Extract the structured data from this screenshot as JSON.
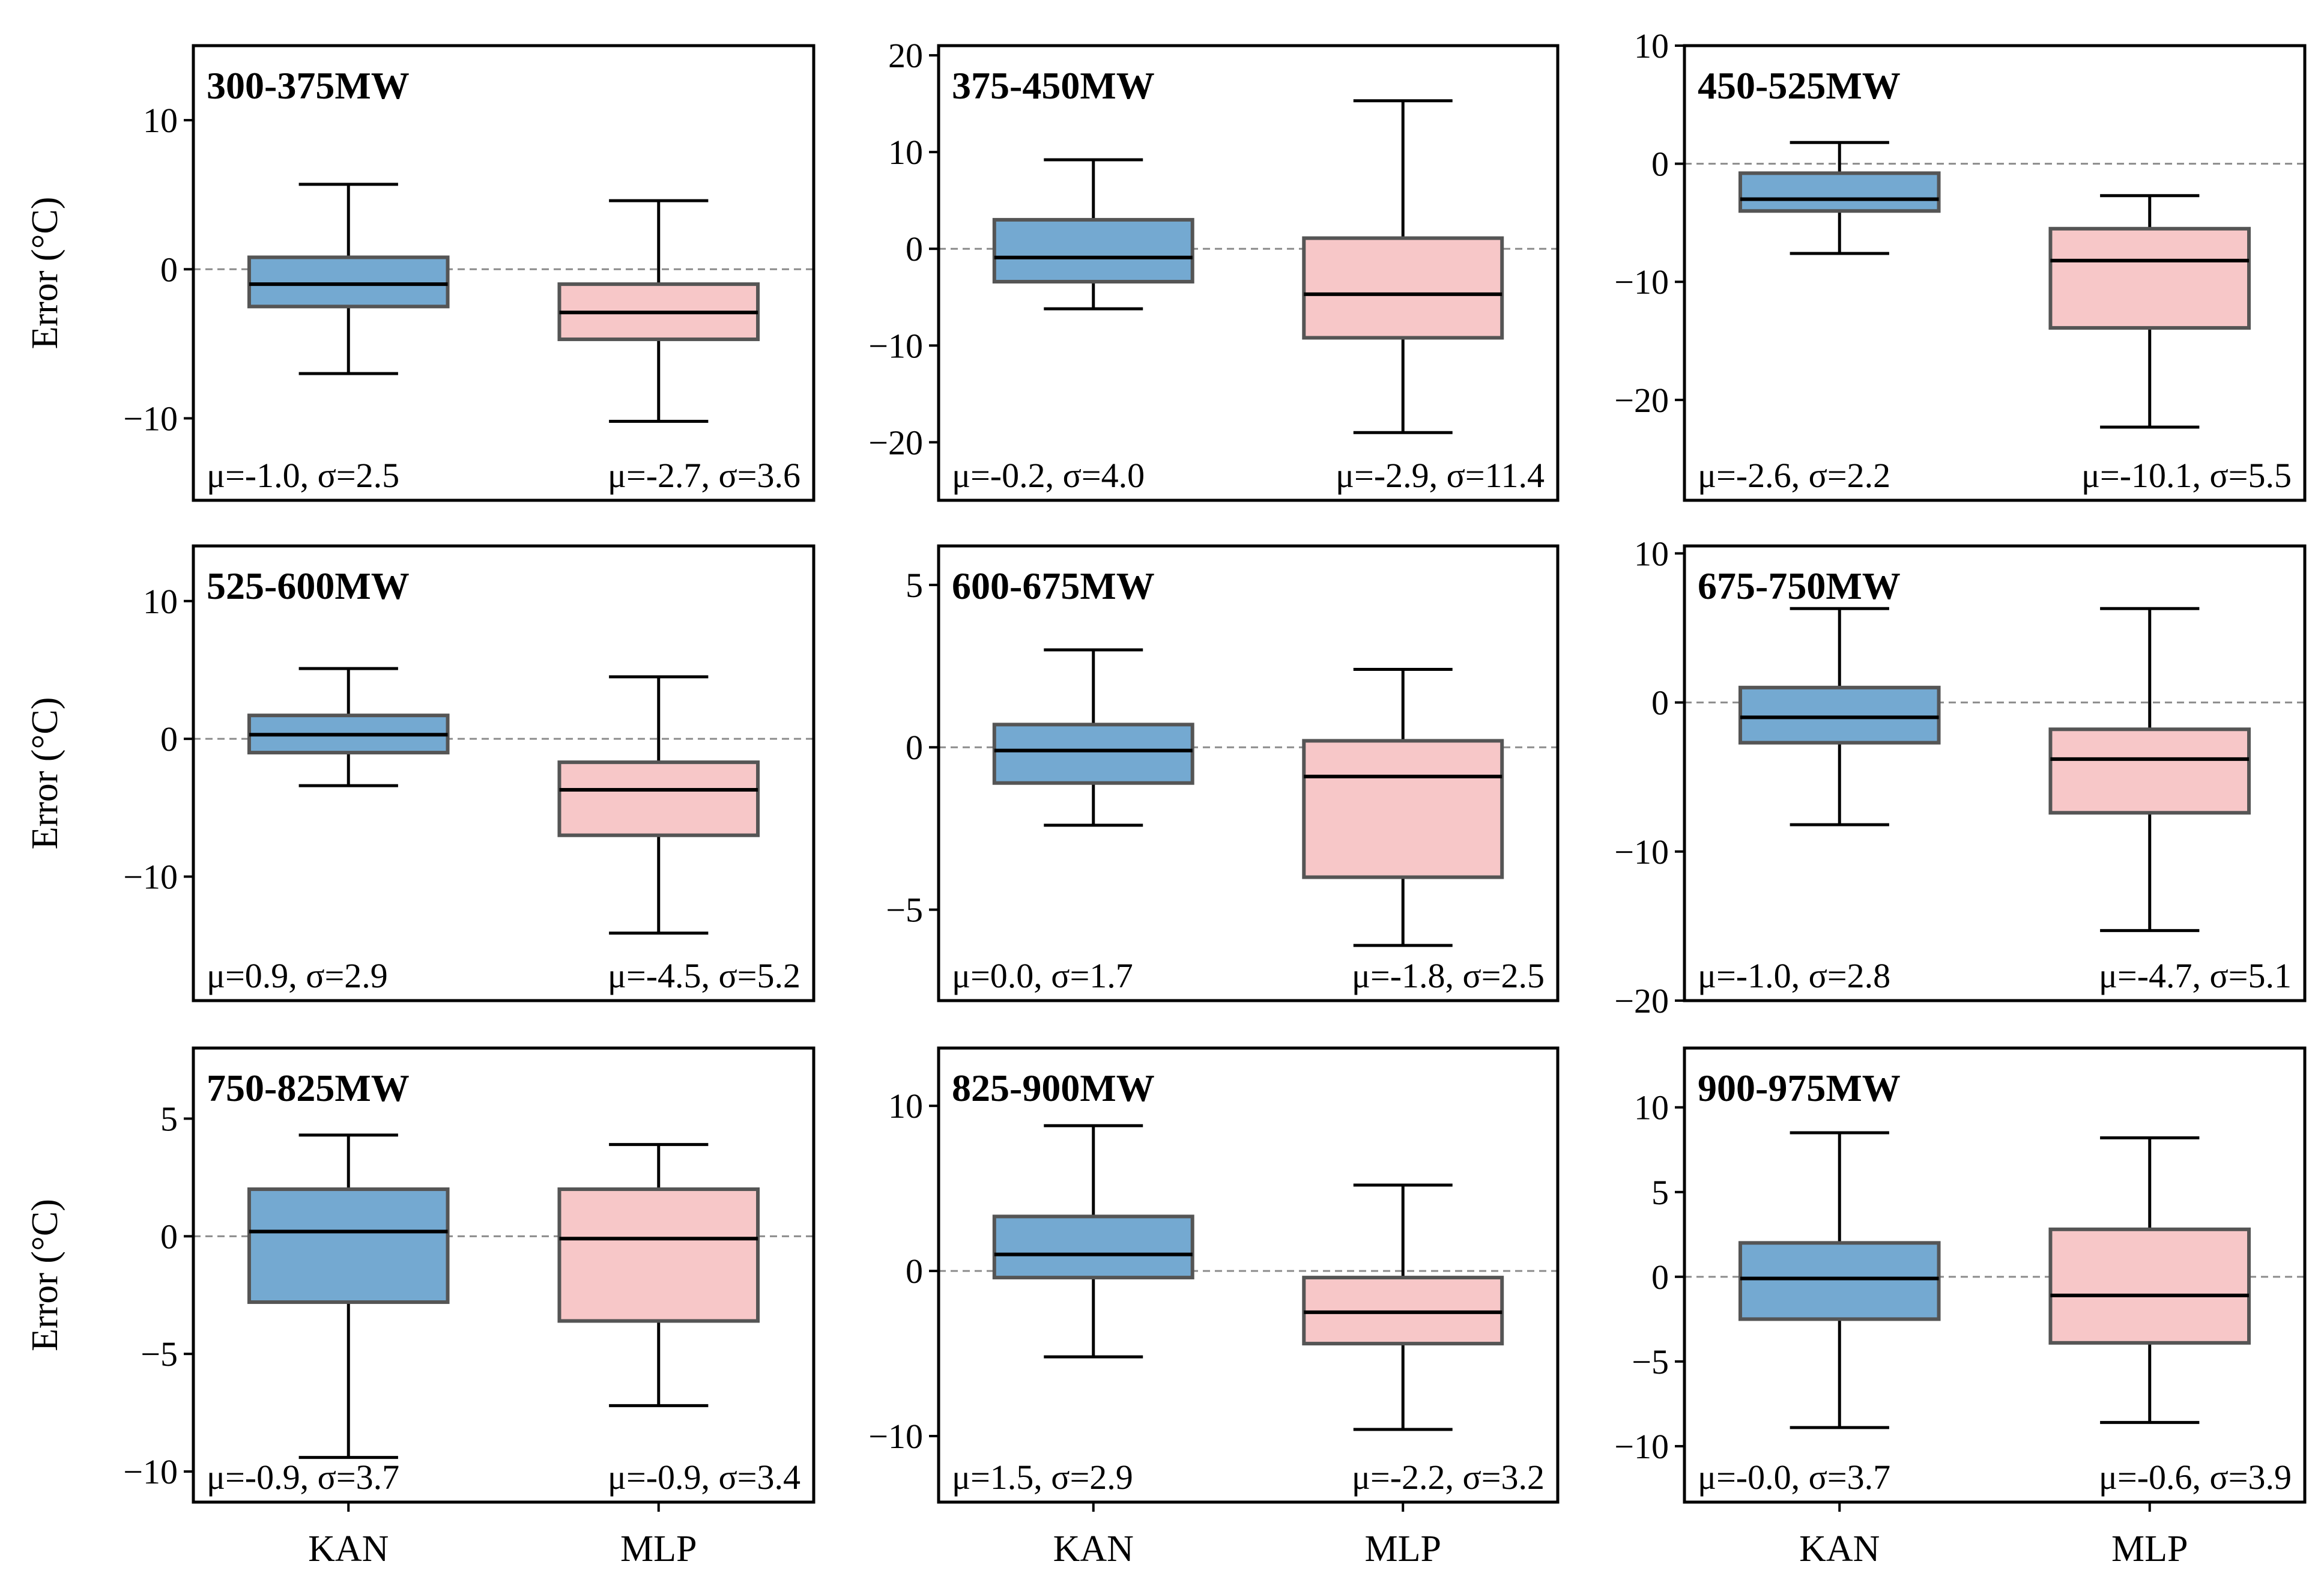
{
  "chart_data": {
    "type": "box",
    "ylabel": "Error (°C)",
    "categories": [
      "KAN",
      "MLP"
    ],
    "colors": {
      "KAN": "#74a9d1",
      "MLP": "#f7c7c8",
      "edge": "#555555"
    },
    "zero_line": {
      "y": 0,
      "style": "dashed",
      "color": "#8c8c8c"
    },
    "panels": [
      {
        "title": "300-375MW",
        "ylim": [
          -15.5,
          15
        ],
        "yticks": [
          {
            "v": 10,
            "label": "10"
          },
          {
            "v": 0,
            "label": "0"
          },
          {
            "v": -10,
            "label": "−10"
          }
        ],
        "boxes": [
          {
            "category": "KAN",
            "whisker_low": -7.0,
            "q1": -2.5,
            "median": -1.0,
            "q3": 0.8,
            "whisker_high": 5.7,
            "stats": "μ=-1.0, σ=2.5"
          },
          {
            "category": "MLP",
            "whisker_low": -10.2,
            "q1": -4.7,
            "median": -2.9,
            "q3": -1.0,
            "whisker_high": 4.6,
            "stats": "μ=-2.7, σ=3.6"
          }
        ]
      },
      {
        "title": "375-450MW",
        "ylim": [
          -26,
          21
        ],
        "yticks": [
          {
            "v": 20,
            "label": "20"
          },
          {
            "v": 10,
            "label": "10"
          },
          {
            "v": 0,
            "label": "0"
          },
          {
            "v": -10,
            "label": "−10"
          },
          {
            "v": -20,
            "label": "−20"
          }
        ],
        "boxes": [
          {
            "category": "KAN",
            "whisker_low": -6.2,
            "q1": -3.4,
            "median": -0.9,
            "q3": 3.0,
            "whisker_high": 9.2,
            "stats": "μ=-0.2, σ=4.0"
          },
          {
            "category": "MLP",
            "whisker_low": -19.0,
            "q1": -9.2,
            "median": -4.7,
            "q3": 1.1,
            "whisker_high": 15.3,
            "stats": "μ=-2.9, σ=11.4"
          }
        ]
      },
      {
        "title": "450-525MW",
        "ylim": [
          -28.5,
          10
        ],
        "yticks": [
          {
            "v": 10,
            "label": "10"
          },
          {
            "v": 0,
            "label": "0"
          },
          {
            "v": -10,
            "label": "−10"
          },
          {
            "v": -20,
            "label": "−20"
          }
        ],
        "boxes": [
          {
            "category": "KAN",
            "whisker_low": -7.6,
            "q1": -4.0,
            "median": -3.0,
            "q3": -0.8,
            "whisker_high": 1.8,
            "stats": "μ=-2.6, σ=2.2"
          },
          {
            "category": "MLP",
            "whisker_low": -22.3,
            "q1": -13.9,
            "median": -8.2,
            "q3": -5.5,
            "whisker_high": -2.7,
            "stats": "μ=-10.1, σ=5.5"
          }
        ]
      },
      {
        "title": "525-600MW",
        "ylim": [
          -19,
          14
        ],
        "yticks": [
          {
            "v": 10,
            "label": "10"
          },
          {
            "v": 0,
            "label": "0"
          },
          {
            "v": -10,
            "label": "−10"
          }
        ],
        "boxes": [
          {
            "category": "KAN",
            "whisker_low": -3.4,
            "q1": -1.0,
            "median": 0.3,
            "q3": 1.7,
            "whisker_high": 5.1,
            "stats": "μ=0.9, σ=2.9"
          },
          {
            "category": "MLP",
            "whisker_low": -14.1,
            "q1": -7.0,
            "median": -3.7,
            "q3": -1.7,
            "whisker_high": 4.5,
            "stats": "μ=-4.5, σ=5.2"
          }
        ]
      },
      {
        "title": "600-675MW",
        "ylim": [
          -7.8,
          6.2
        ],
        "yticks": [
          {
            "v": 5,
            "label": "5"
          },
          {
            "v": 0,
            "label": "0"
          },
          {
            "v": -5,
            "label": "−5"
          }
        ],
        "boxes": [
          {
            "category": "KAN",
            "whisker_low": -2.4,
            "q1": -1.1,
            "median": -0.1,
            "q3": 0.7,
            "whisker_high": 3.0,
            "stats": "μ=0.0, σ=1.7"
          },
          {
            "category": "MLP",
            "whisker_low": -6.1,
            "q1": -4.0,
            "median": -0.9,
            "q3": 0.2,
            "whisker_high": 2.4,
            "stats": "μ=-1.8, σ=2.5"
          }
        ]
      },
      {
        "title": "675-750MW",
        "ylim": [
          -20,
          10.5
        ],
        "yticks": [
          {
            "v": 10,
            "label": "10"
          },
          {
            "v": 0,
            "label": "0"
          },
          {
            "v": -10,
            "label": "−10"
          },
          {
            "v": -20,
            "label": "−20"
          }
        ],
        "boxes": [
          {
            "category": "KAN",
            "whisker_low": -8.2,
            "q1": -2.7,
            "median": -1.0,
            "q3": 1.0,
            "whisker_high": 6.3,
            "stats": "μ=-1.0, σ=2.8"
          },
          {
            "category": "MLP",
            "whisker_low": -15.3,
            "q1": -7.4,
            "median": -3.8,
            "q3": -1.8,
            "whisker_high": 6.3,
            "stats": "μ=-4.7, σ=5.1"
          }
        ]
      },
      {
        "title": "750-825MW",
        "ylim": [
          -11.3,
          8
        ],
        "yticks": [
          {
            "v": 5,
            "label": "5"
          },
          {
            "v": 0,
            "label": "0"
          },
          {
            "v": -5,
            "label": "−5"
          },
          {
            "v": -10,
            "label": "−10"
          }
        ],
        "boxes": [
          {
            "category": "KAN",
            "whisker_low": -9.4,
            "q1": -2.8,
            "median": 0.2,
            "q3": 2.0,
            "whisker_high": 4.3,
            "stats": "μ=-0.9, σ=3.7"
          },
          {
            "category": "MLP",
            "whisker_low": -7.2,
            "q1": -3.6,
            "median": -0.1,
            "q3": 2.0,
            "whisker_high": 3.9,
            "stats": "μ=-0.9, σ=3.4"
          }
        ]
      },
      {
        "title": "825-900MW",
        "ylim": [
          -14,
          13.5
        ],
        "yticks": [
          {
            "v": 10,
            "label": "10"
          },
          {
            "v": 0,
            "label": "0"
          },
          {
            "v": -10,
            "label": "−10"
          }
        ],
        "boxes": [
          {
            "category": "KAN",
            "whisker_low": -5.2,
            "q1": -0.4,
            "median": 1.0,
            "q3": 3.3,
            "whisker_high": 8.8,
            "stats": "μ=1.5, σ=2.9"
          },
          {
            "category": "MLP",
            "whisker_low": -9.6,
            "q1": -4.4,
            "median": -2.5,
            "q3": -0.4,
            "whisker_high": 5.2,
            "stats": "μ=-2.2, σ=3.2"
          }
        ]
      },
      {
        "title": "900-975MW",
        "ylim": [
          -13.3,
          13.5
        ],
        "yticks": [
          {
            "v": 10,
            "label": "10"
          },
          {
            "v": 5,
            "label": "5"
          },
          {
            "v": 0,
            "label": "0"
          },
          {
            "v": -5,
            "label": "−5"
          },
          {
            "v": -10,
            "label": "−10"
          }
        ],
        "boxes": [
          {
            "category": "KAN",
            "whisker_low": -8.9,
            "q1": -2.5,
            "median": -0.1,
            "q3": 2.0,
            "whisker_high": 8.5,
            "stats": "μ=-0.0, σ=3.7"
          },
          {
            "category": "MLP",
            "whisker_low": -8.6,
            "q1": -3.9,
            "median": -1.1,
            "q3": 2.8,
            "whisker_high": 8.2,
            "stats": "μ=-0.6, σ=3.9"
          }
        ]
      }
    ]
  }
}
